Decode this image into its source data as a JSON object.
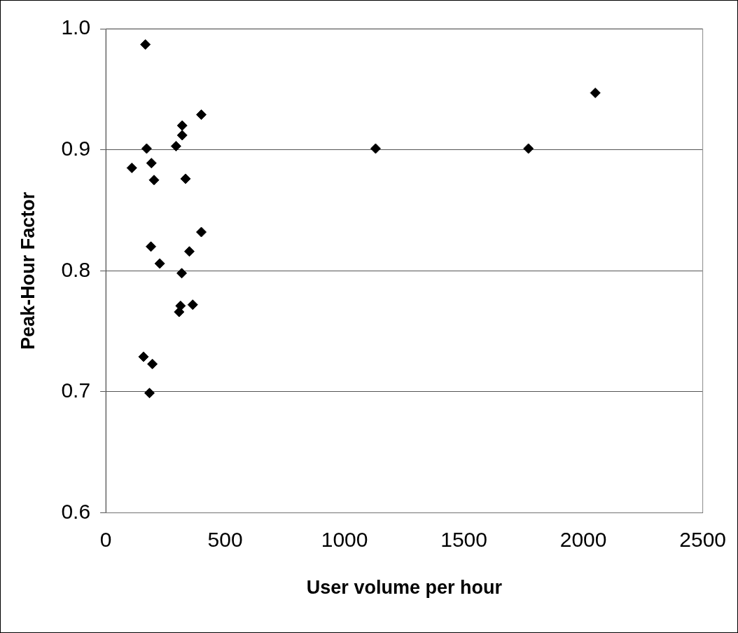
{
  "chart_data": {
    "type": "scatter",
    "xlabel": "User volume per hour",
    "ylabel": "Peak-Hour Factor",
    "x": [
      166,
      400,
      320,
      320,
      294,
      171,
      191,
      109,
      202,
      334,
      400,
      189,
      350,
      226,
      318,
      364,
      313,
      307,
      158,
      195,
      183,
      1130,
      1770,
      2050
    ],
    "values": [
      0.987,
      0.929,
      0.92,
      0.912,
      0.903,
      0.901,
      0.889,
      0.885,
      0.875,
      0.876,
      0.832,
      0.82,
      0.816,
      0.806,
      0.798,
      0.772,
      0.771,
      0.766,
      0.729,
      0.723,
      0.699,
      0.901,
      0.901,
      0.947
    ],
    "color": "#000000",
    "marker": "diamond",
    "xlim": [
      0,
      2500
    ],
    "xticks": [
      0,
      500,
      1000,
      1500,
      2000,
      2500
    ],
    "ylim": [
      0.6,
      1.0
    ],
    "yticks": [
      {
        "value": 0.6,
        "label": "0.6"
      },
      {
        "value": 0.7,
        "label": "0.7"
      },
      {
        "value": 0.8,
        "label": "0.8"
      },
      {
        "value": 0.9,
        "label": "0.9"
      },
      {
        "value": 1.0,
        "label": "1.0"
      }
    ],
    "grid": "y"
  }
}
